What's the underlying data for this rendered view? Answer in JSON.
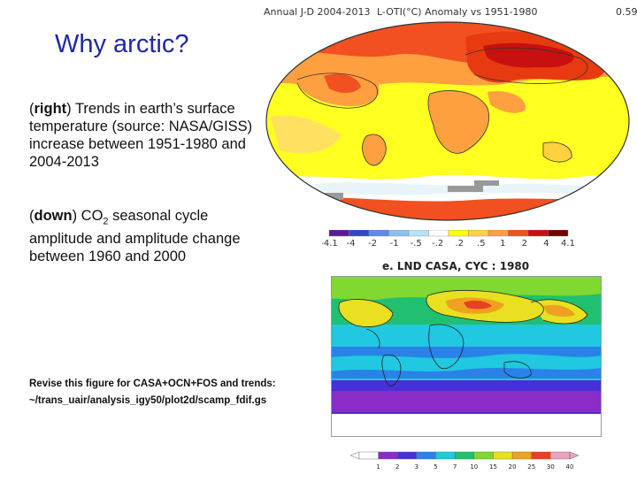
{
  "slide": {
    "title": "Why arctic?",
    "para1": {
      "bold": "right",
      "text": "Trends in earth’s surface temperature (source: NASA/GISS) increase between 1951-1980 and 2004-2013"
    },
    "para2": {
      "bold": "down",
      "pre": " CO",
      "sub": "2",
      "post": " seasonal cycle amplitude and amplitude change between 1960 and 2000"
    },
    "note": {
      "line1": "Revise this figure for CASA+OCN+FOS and trends:",
      "line2": "~/trans_uair/analysis_igy50/plot2d/scamp_fdif.gs"
    }
  },
  "map1": {
    "header_left": "Annual J-D 2004-2013",
    "header_mid": "L-OTI(°C) Anomaly vs 1951-1980",
    "header_right": "0.59",
    "scale_labels": [
      "-4.1",
      "-4",
      "-2",
      "-1",
      "-.5",
      "-.2",
      ".2",
      ".5",
      "1",
      "2",
      "4",
      "4.1"
    ],
    "scale_colors": [
      "#5b1a9a",
      "#3048c8",
      "#5f8ae8",
      "#8bc0f0",
      "#b8e2f6",
      "#ffffff",
      "#ffff00",
      "#ffd040",
      "#ffa040",
      "#f25020",
      "#c81010",
      "#7a0000"
    ]
  },
  "map2": {
    "title": "e.  LND CASA, CYC  :  1980",
    "scale_labels": [
      "1",
      "2",
      "3",
      "5",
      "7",
      "10",
      "15",
      "20",
      "25",
      "30",
      "40"
    ],
    "scale_colors": [
      "#ffffff",
      "#8a2cc8",
      "#4630d8",
      "#2a82e8",
      "#20c8e0",
      "#20c070",
      "#80d830",
      "#e8e020",
      "#f0a020",
      "#e84020",
      "#f0a0c0"
    ]
  }
}
